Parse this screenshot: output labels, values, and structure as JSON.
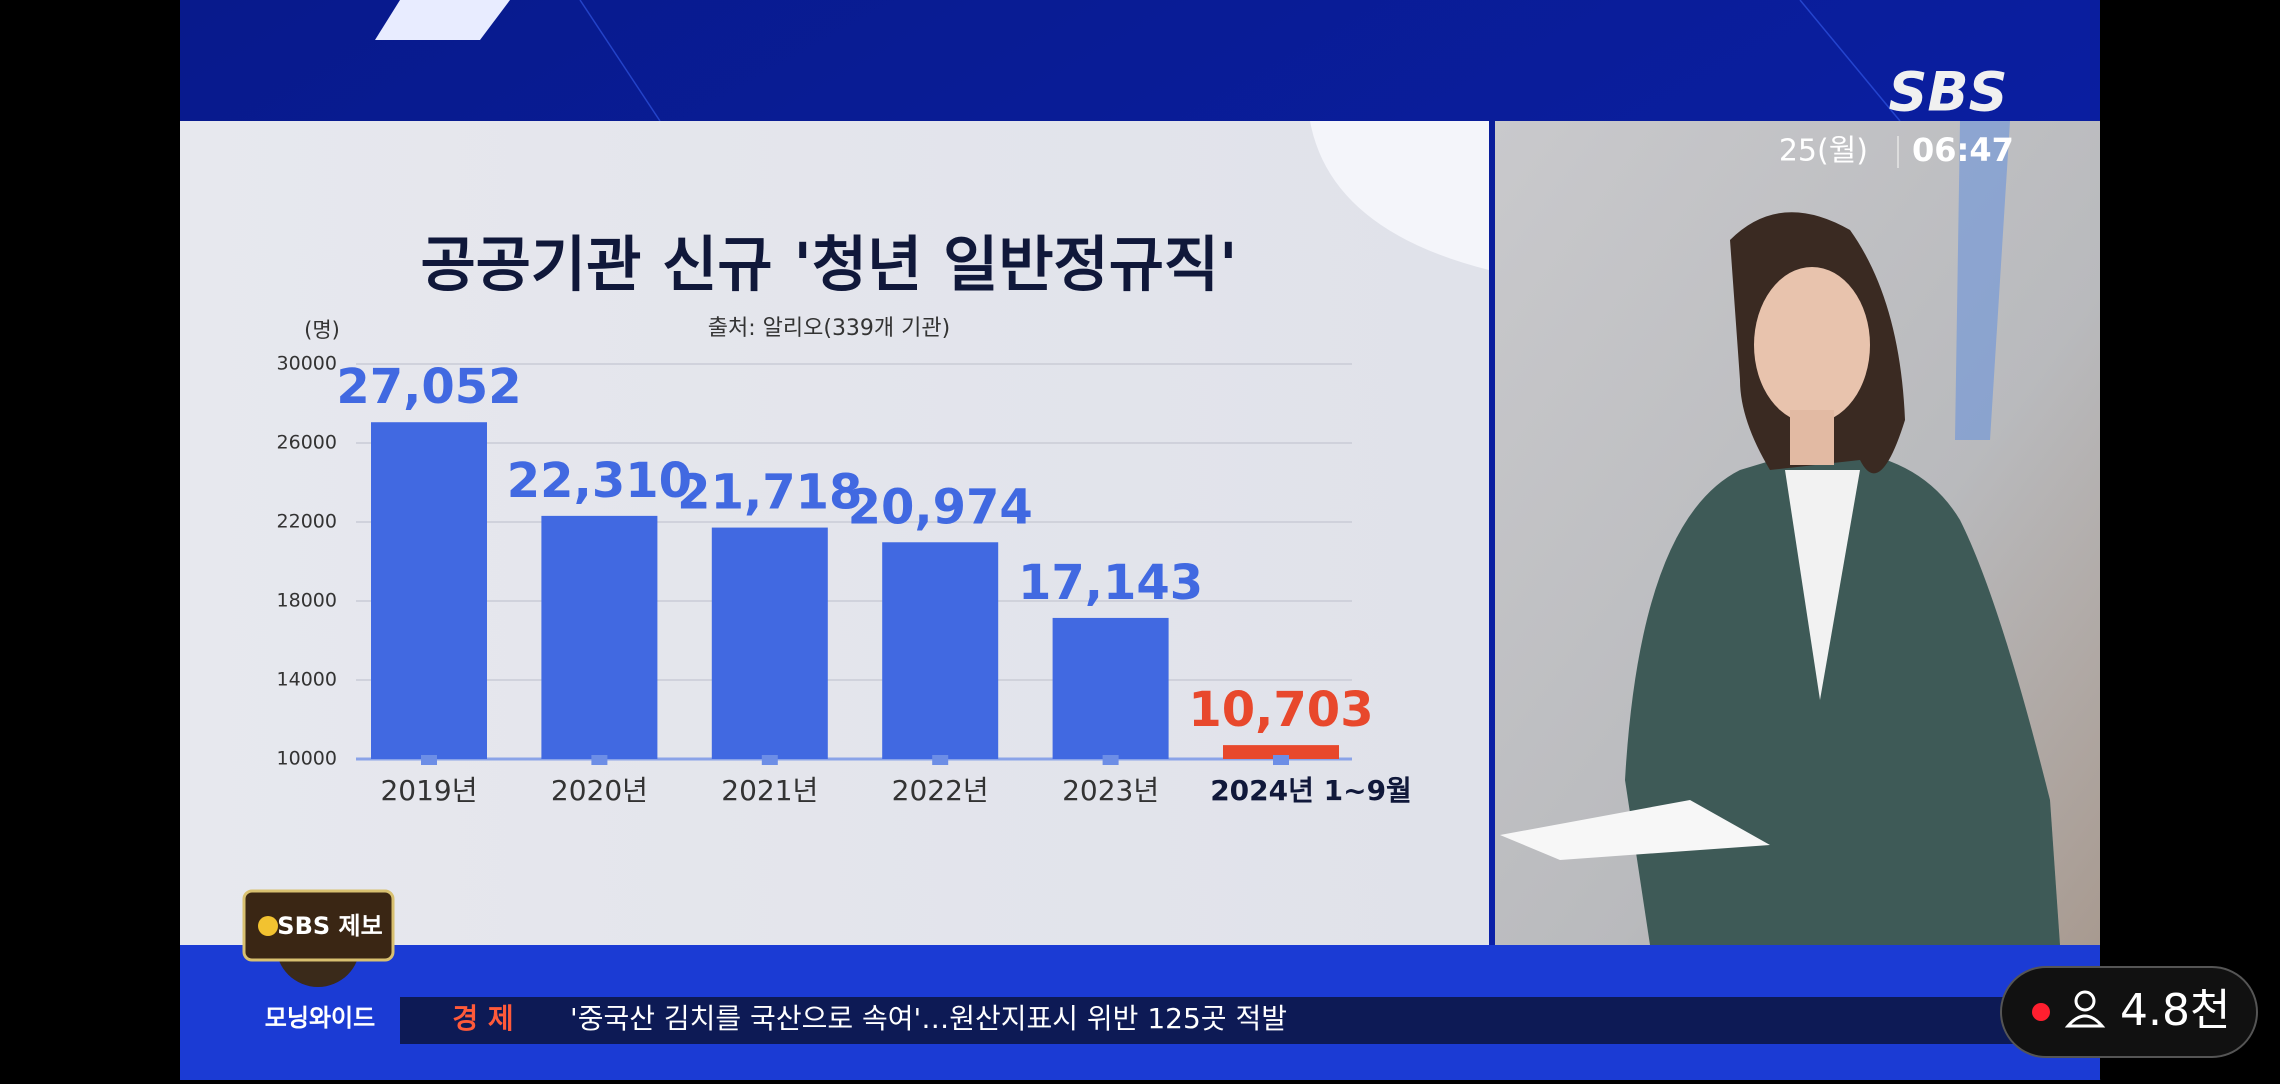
{
  "chart_data": {
    "type": "bar",
    "title": "공공기관 신규 '청년 일반정규직'",
    "subtitle": "출처: 알리오(339개 기관)",
    "y_label": "(명)",
    "categories": [
      "2019년",
      "2020년",
      "2021년",
      "2022년",
      "2023년",
      "2024년 1~9월"
    ],
    "values": [
      27052,
      22310,
      21718,
      20974,
      17143,
      10703
    ],
    "value_labels": [
      "27,052",
      "22,310",
      "21,718",
      "20,974",
      "17,143",
      "10,703"
    ],
    "colors": [
      "#4169e1",
      "#4169e1",
      "#4169e1",
      "#4169e1",
      "#4169e1",
      "#e8482c"
    ],
    "ylim": [
      10000,
      30000
    ],
    "yticks": [
      10000,
      14000,
      18000,
      22000,
      26000,
      30000
    ],
    "grid": true
  },
  "broadcast": {
    "logo": "SBS",
    "date": "25(월)",
    "time": "06:47",
    "program": "모닝와이드",
    "section": "경 제",
    "headline": "'중국산 김치를 국산으로 속여'…원산지표시 위반 125곳 적발",
    "report_badge": "SBS 제보",
    "viewers": "4.8천"
  }
}
